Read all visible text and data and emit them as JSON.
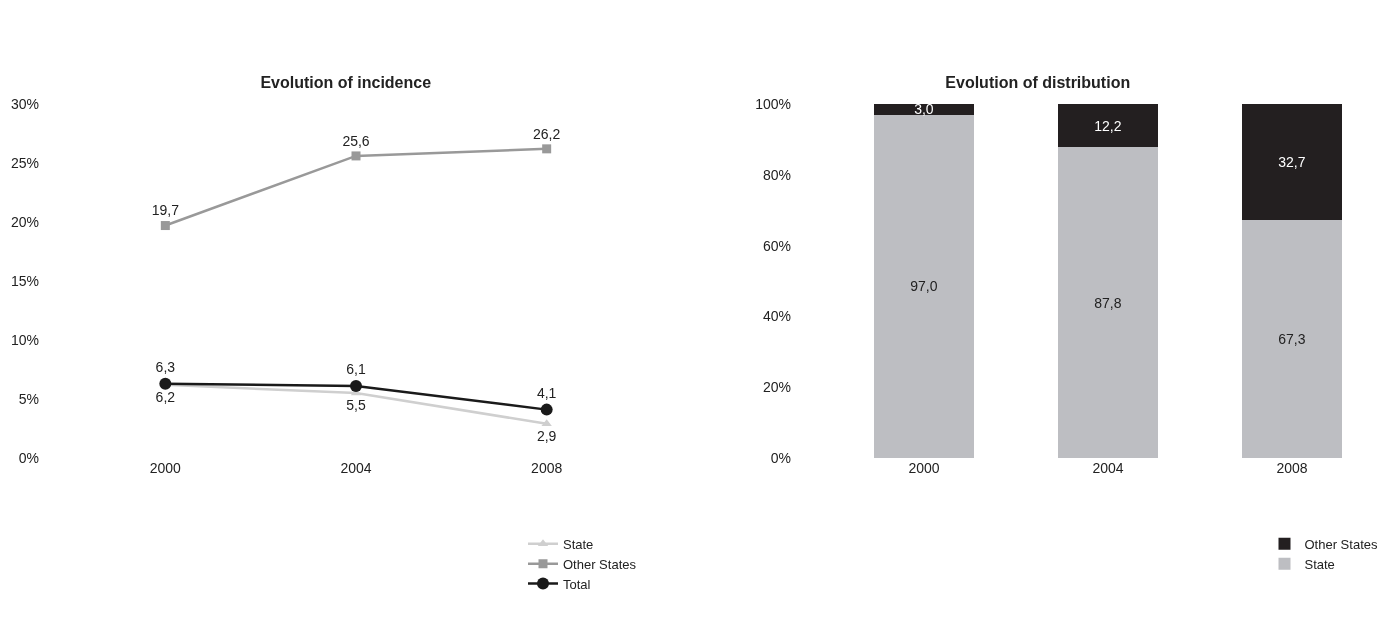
{
  "chart_data": [
    {
      "type": "line",
      "title": "Evolution of incidence",
      "categories": [
        "2000",
        "2004",
        "2008"
      ],
      "ylim": [
        0,
        30
      ],
      "yticks": [
        {
          "value": 0,
          "label": "0%"
        },
        {
          "value": 5,
          "label": "5%"
        },
        {
          "value": 10,
          "label": "10%"
        },
        {
          "value": 15,
          "label": "15%"
        },
        {
          "value": 20,
          "label": "20%"
        },
        {
          "value": 25,
          "label": "25%"
        },
        {
          "value": 30,
          "label": "30%"
        }
      ],
      "grid": false,
      "legend": "bottom right",
      "series": [
        {
          "name": "State",
          "color": "#cfcfcf",
          "marker": "triangle",
          "values": [
            6.2,
            5.5,
            2.9
          ],
          "value_labels": [
            "6,2",
            "5,5",
            "2,9"
          ]
        },
        {
          "name": "Other States",
          "color": "#999999",
          "marker": "square",
          "values": [
            19.7,
            25.6,
            26.2
          ],
          "value_labels": [
            "19,7",
            "25,6",
            "26,2"
          ]
        },
        {
          "name": "Total",
          "color": "#1a1a1a",
          "marker": "circle",
          "values": [
            6.3,
            6.1,
            4.1
          ],
          "value_labels": [
            "6,3",
            "6,1",
            "4,1"
          ]
        }
      ]
    },
    {
      "type": "bar",
      "stacked": true,
      "title": "Evolution of distribution",
      "categories": [
        "2000",
        "2004",
        "2008"
      ],
      "ylim": [
        0,
        100
      ],
      "yticks": [
        {
          "value": 0,
          "label": "0%"
        },
        {
          "value": 20,
          "label": "20%"
        },
        {
          "value": 40,
          "label": "40%"
        },
        {
          "value": 60,
          "label": "60%"
        },
        {
          "value": 80,
          "label": "80%"
        },
        {
          "value": 100,
          "label": "100%"
        }
      ],
      "grid": false,
      "legend": "bottom right",
      "series": [
        {
          "name": "State",
          "color": "#bdbec2",
          "values": [
            97.0,
            87.8,
            67.3
          ],
          "value_labels": [
            "97,0",
            "87,8",
            "67,3"
          ]
        },
        {
          "name": "Other States",
          "color": "#231f20",
          "values": [
            3.0,
            12.2,
            32.7
          ],
          "value_labels": [
            "3,0",
            "12,2",
            "32,7"
          ]
        }
      ]
    }
  ]
}
